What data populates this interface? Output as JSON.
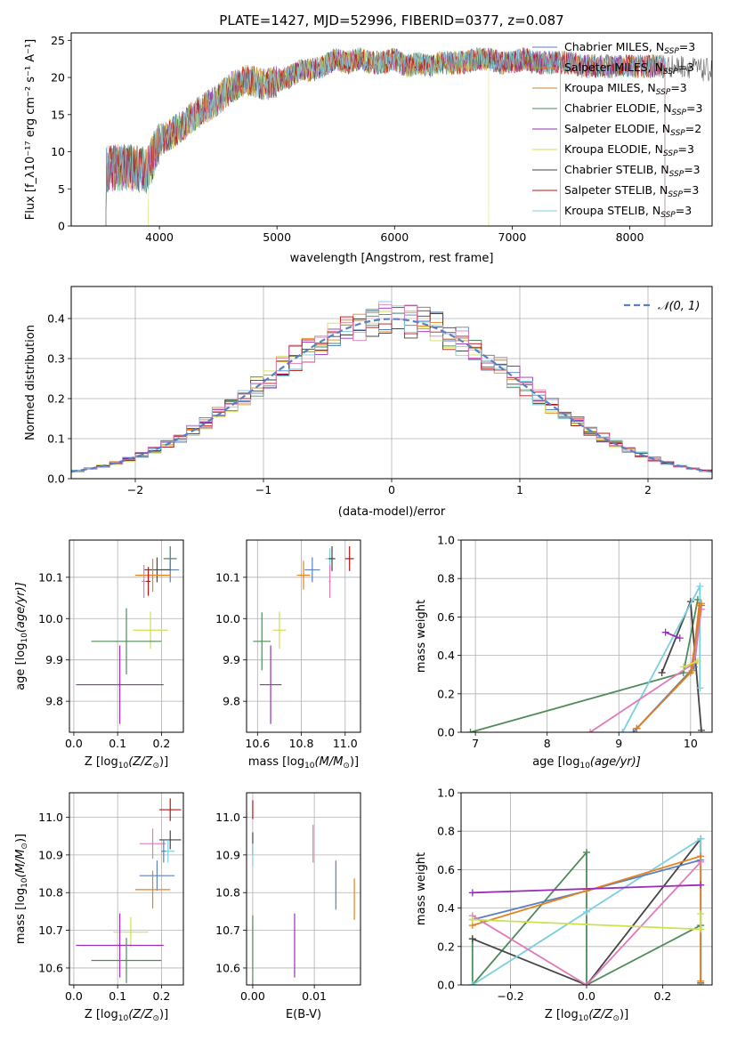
{
  "chart_data": [
    {
      "id": "spectrum",
      "type": "line",
      "title": "PLATE=1427, MJD=52996, FIBERID=0377, z=0.087",
      "xlabel": "wavelength [Angstrom, rest frame]",
      "ylabel": "Flux [f_λ10⁻¹⁷ erg cm⁻² s⁻¹ A⁻¹]",
      "xlim": [
        3250,
        8700
      ],
      "ylim": [
        0,
        26
      ],
      "xticks": [
        4000,
        5000,
        6000,
        7000,
        8000
      ],
      "yticks": [
        0,
        5,
        10,
        15,
        20,
        25
      ],
      "grid": false,
      "legend_position": "right",
      "series": [
        {
          "name": "Chabrier MILES, N_SSP=3",
          "label_main": "Chabrier MILES, N",
          "label_sub": "SSP",
          "label_tail": "=3",
          "color": "#5a7fc2"
        },
        {
          "name": "Salpeter MILES, N_SSP=3",
          "label_main": "Salpeter MILES, N",
          "label_sub": "SSP",
          "label_tail": "=3",
          "color": "#e3831f"
        },
        {
          "name": "Kroupa MILES, N_SSP=3",
          "label_main": "Kroupa MILES, N",
          "label_sub": "SSP",
          "label_tail": "=3",
          "color": "#d0802f"
        },
        {
          "name": "Chabrier ELODIE, N_SSP=3",
          "label_main": "Chabrier ELODIE, N",
          "label_sub": "SSP",
          "label_tail": "=3",
          "color": "#4f8b5a"
        },
        {
          "name": "Salpeter ELODIE, N_SSP=2",
          "label_main": "Salpeter ELODIE, N",
          "label_sub": "SSP",
          "label_tail": "=2",
          "color": "#9a2db8"
        },
        {
          "name": "Kroupa ELODIE, N_SSP=3",
          "label_main": "Kroupa ELODIE, N",
          "label_sub": "SSP",
          "label_tail": "=3",
          "color": "#cfe04f"
        },
        {
          "name": "Chabrier STELIB, N_SSP=3",
          "label_main": "Chabrier STELIB, N",
          "label_sub": "SSP",
          "label_tail": "=3",
          "color": "#444444"
        },
        {
          "name": "Salpeter STELIB, N_SSP=3",
          "label_main": "Salpeter STELIB, N",
          "label_sub": "SSP",
          "label_tail": "=3",
          "color": "#b81414"
        },
        {
          "name": "Kroupa STELIB, N_SSP=3",
          "label_main": "Kroupa STELIB, N",
          "label_sub": "SSP",
          "label_tail": "=3",
          "color": "#7ccfe0"
        }
      ],
      "continuum": {
        "x": [
          3500,
          3600,
          3700,
          3800,
          3900,
          4000,
          4100,
          4200,
          4300,
          4400,
          4500,
          4600,
          4700,
          4800,
          4900,
          5000,
          5100,
          5200,
          5300,
          5400,
          5500,
          5600,
          5700,
          5800,
          5900,
          6000,
          6100,
          6200,
          6300,
          6400,
          6500,
          6600,
          6700,
          6800,
          6900,
          7000,
          7100,
          7200,
          7300,
          7400,
          7500,
          7600,
          7700,
          7800,
          7900,
          8000,
          8100,
          8200,
          8300,
          8400,
          8500,
          8600,
          8700
        ],
        "y": [
          7.5,
          7.8,
          7.9,
          7.7,
          7.5,
          11.5,
          12.5,
          13.5,
          15,
          16,
          17,
          18.5,
          19.5,
          19.5,
          19,
          19.5,
          20,
          21,
          21,
          21.5,
          22.5,
          22,
          22.5,
          22,
          22,
          22.5,
          21.5,
          22,
          21.5,
          22,
          22,
          22,
          22.5,
          22.5,
          22,
          22,
          22.5,
          22,
          22,
          22,
          22,
          21.5,
          21.5,
          21.5,
          21.5,
          21.5,
          21.5,
          21.5,
          21.5,
          21.5,
          21.5,
          21,
          21
        ]
      },
      "spectrum_ranges": [
        {
          "series": "Chabrier MILES, N_SSP=3",
          "x_start": 3540,
          "x_end": 7410
        },
        {
          "series": "Kroupa ELODIE, N_SSP=3",
          "x_start": 3900,
          "x_end": 6800
        },
        {
          "series": "Chabrier STELIB, N_SSP=3",
          "x_start": 3540,
          "x_end": 8700
        }
      ]
    },
    {
      "id": "residuals",
      "type": "step",
      "xlabel": "(data-model)/error",
      "ylabel": "Normed distribution",
      "xlim": [
        -2.5,
        2.5
      ],
      "ylim": [
        0,
        0.48
      ],
      "xticks": [
        -2,
        -1,
        0,
        1,
        2
      ],
      "yticks": [
        0.0,
        0.1,
        0.2,
        0.3,
        0.4
      ],
      "grid": true,
      "legend": {
        "label": "𝒩(0, 1)",
        "position": "top-right"
      },
      "bin_width": 0.1,
      "reference_curve": "normal(0,1)"
    },
    {
      "id": "age_vs_Z",
      "type": "errorbar",
      "xlabel_main": "Z [log",
      "xlabel_sub": "10",
      "xlabel_tail": "(Z/Z",
      "xlabel_sun": "⊙",
      "xlabel_end": ")]",
      "ylabel_main": "age  [log",
      "ylabel_sub": "10",
      "ylabel_tail": "(age/yr)]",
      "xlim": [
        -0.01,
        0.25
      ],
      "ylim": [
        9.725,
        10.19
      ],
      "xticks": [
        0.0,
        0.1,
        0.2
      ],
      "yticks": [
        9.8,
        9.9,
        10.0,
        10.1
      ],
      "grid": true,
      "points": [
        {
          "x": 0.22,
          "y": 10.145,
          "xerr": 0.015,
          "yerr": 0.03,
          "color": "#7ccfe0"
        },
        {
          "x": 0.22,
          "y": 10.145,
          "xerr": 0.015,
          "yerr": 0.03,
          "color": "#4f8b5a"
        },
        {
          "x": 0.22,
          "y": 10.118,
          "xerr": 0.02,
          "yerr": 0.03,
          "color": "#5a7fc2"
        },
        {
          "x": 0.19,
          "y": 10.118,
          "xerr": 0.03,
          "yerr": 0.03,
          "color": "#444444"
        },
        {
          "x": 0.18,
          "y": 10.105,
          "xerr": 0.04,
          "yerr": 0.04,
          "color": "#e3831f"
        },
        {
          "x": 0.16,
          "y": 10.09,
          "xerr": 0.005,
          "yerr": 0.04,
          "color": "#e07bb8"
        },
        {
          "x": 0.17,
          "y": 10.09,
          "xerr": 0.005,
          "yerr": 0.035,
          "color": "#b81414"
        },
        {
          "x": 0.175,
          "y": 9.972,
          "xerr": 0.04,
          "yerr": 0.045,
          "color": "#cfe04f"
        },
        {
          "x": 0.12,
          "y": 9.945,
          "xerr": 0.08,
          "yerr": 0.08,
          "color": "#4f8b5a"
        },
        {
          "x": 0.105,
          "y": 9.84,
          "xerr": 0.1,
          "yerr": 0.095,
          "color": "#9a2db8"
        }
      ]
    },
    {
      "id": "age_vs_mass",
      "type": "errorbar",
      "xlabel_main": "mass [log",
      "xlabel_sub": "10",
      "xlabel_tail": "(M/M",
      "xlabel_sun": "⊙",
      "xlabel_end": ")]",
      "xlim": [
        10.55,
        11.07
      ],
      "ylim": [
        9.725,
        10.19
      ],
      "xticks": [
        10.6,
        10.8,
        11.0
      ],
      "yticks": [
        9.8,
        9.9,
        10.0,
        10.1
      ],
      "grid": true,
      "points": [
        {
          "x": 11.02,
          "y": 10.145,
          "xerr": 0.02,
          "yerr": 0.03,
          "color": "#b81414"
        },
        {
          "x": 10.93,
          "y": 10.145,
          "xerr": 0.02,
          "yerr": 0.025,
          "color": "#7ccfe0"
        },
        {
          "x": 10.94,
          "y": 10.145,
          "xerr": 0.015,
          "yerr": 0.03,
          "color": "#444444"
        },
        {
          "x": 10.85,
          "y": 10.118,
          "xerr": 0.035,
          "yerr": 0.03,
          "color": "#5a7fc2"
        },
        {
          "x": 10.81,
          "y": 10.105,
          "xerr": 0.03,
          "yerr": 0.035,
          "color": "#e3831f"
        },
        {
          "x": 10.93,
          "y": 10.09,
          "xerr": 0.005,
          "yerr": 0.04,
          "color": "#e07bb8"
        },
        {
          "x": 10.7,
          "y": 9.972,
          "xerr": 0.03,
          "yerr": 0.045,
          "color": "#cfe04f"
        },
        {
          "x": 10.62,
          "y": 9.945,
          "xerr": 0.04,
          "yerr": 0.07,
          "color": "#4f8b5a"
        },
        {
          "x": 10.66,
          "y": 9.84,
          "xerr": 0.05,
          "yerr": 0.095,
          "color": "#9a2db8"
        }
      ]
    },
    {
      "id": "mass_weight_vs_age",
      "type": "line",
      "xlabel_main": "age  [log",
      "xlabel_sub": "10",
      "xlabel_tail": "(age/yr)]",
      "ylabel": "mass weight",
      "xlim": [
        6.8,
        10.3
      ],
      "ylim": [
        0,
        1
      ],
      "xticks": [
        7,
        8,
        9,
        10
      ],
      "yticks": [
        0.0,
        0.2,
        0.4,
        0.6,
        0.8,
        1.0
      ],
      "grid": true,
      "series": [
        {
          "color": "#4f8b5a",
          "x": [
            6.93,
            9.9,
            10.1
          ],
          "y": [
            0.0,
            0.31,
            0.69
          ]
        },
        {
          "color": "#444444",
          "x": [
            9.6,
            10.0,
            10.15
          ],
          "y": [
            0.31,
            0.68,
            0.01
          ]
        },
        {
          "color": "#7ccfe0",
          "x": [
            9.05,
            10.13,
            10.13
          ],
          "y": [
            0.0,
            0.76,
            0.23
          ]
        },
        {
          "color": "#5a7fc2",
          "x": [
            9.2,
            10.05,
            10.15
          ],
          "y": [
            0.0,
            0.34,
            0.66
          ]
        },
        {
          "color": "#e07bb8",
          "x": [
            8.6,
            10.05,
            10.15
          ],
          "y": [
            0.0,
            0.36,
            0.64
          ]
        },
        {
          "color": "#e3831f",
          "x": [
            9.25,
            10.0,
            10.15
          ],
          "y": [
            0.02,
            0.31,
            0.67
          ]
        },
        {
          "color": "#d0802f",
          "x": [
            9.25,
            10.02,
            10.12
          ],
          "y": [
            0.02,
            0.32,
            0.66
          ]
        },
        {
          "color": "#9a2db8",
          "x": [
            9.65,
            9.85
          ],
          "y": [
            0.52,
            0.49
          ]
        },
        {
          "color": "#cfe04f",
          "x": [
            9.9,
            10.1
          ],
          "y": [
            0.34,
            0.37
          ]
        }
      ]
    },
    {
      "id": "mass_vs_Z",
      "type": "errorbar",
      "xlabel_main": "Z [log",
      "xlabel_sub": "10",
      "xlabel_tail": "(Z/Z",
      "xlabel_sun": "⊙",
      "xlabel_end": ")]",
      "ylabel_main": "mass [log",
      "ylabel_sub": "10",
      "ylabel_tail": "(M/M",
      "ylabel_sun": "⊙",
      "ylabel_end": ")]",
      "xlim": [
        -0.01,
        0.25
      ],
      "ylim": [
        10.555,
        11.065
      ],
      "xticks": [
        0.0,
        0.1,
        0.2
      ],
      "yticks": [
        10.6,
        10.7,
        10.8,
        10.9,
        11.0
      ],
      "grid": true,
      "points": [
        {
          "x": 0.22,
          "y": 11.02,
          "xerr": 0.025,
          "yerr": 0.03,
          "color": "#b81414"
        },
        {
          "x": 0.22,
          "y": 10.94,
          "xerr": 0.025,
          "yerr": 0.025,
          "color": "#444444"
        },
        {
          "x": 0.18,
          "y": 10.93,
          "xerr": 0.03,
          "yerr": 0.04,
          "color": "#e07bb8"
        },
        {
          "x": 0.215,
          "y": 10.91,
          "xerr": 0.015,
          "yerr": 0.03,
          "color": "#7ccfe0"
        },
        {
          "x": 0.205,
          "y": 10.91,
          "xerr": 0.005,
          "yerr": 0.03,
          "color": "#5a7fc2"
        },
        {
          "x": 0.19,
          "y": 10.845,
          "xerr": 0.04,
          "yerr": 0.04,
          "color": "#5a7fc2"
        },
        {
          "x": 0.18,
          "y": 10.808,
          "xerr": 0.04,
          "yerr": 0.05,
          "color": "#e3831f"
        },
        {
          "x": 0.13,
          "y": 10.695,
          "xerr": 0.04,
          "yerr": 0.04,
          "color": "#cfe04f"
        },
        {
          "x": 0.105,
          "y": 10.66,
          "xerr": 0.1,
          "yerr": 0.085,
          "color": "#9a2db8"
        },
        {
          "x": 0.12,
          "y": 10.62,
          "xerr": 0.08,
          "yerr": 0.06,
          "color": "#4f8b5a"
        }
      ]
    },
    {
      "id": "mass_vs_EBV",
      "type": "errorbar",
      "xlabel": "E(B-V)",
      "xlim": [
        -0.001,
        0.0175
      ],
      "ylim": [
        10.555,
        11.065
      ],
      "xticks": [
        0.0,
        0.01
      ],
      "yticks": [
        10.6,
        10.7,
        10.8,
        10.9,
        11.0
      ],
      "grid": true,
      "points": [
        {
          "x": 0.0,
          "y": 11.02,
          "xerr": 0,
          "yerr": 0.025,
          "color": "#b81414"
        },
        {
          "x": 0.0,
          "y": 10.93,
          "xerr": 0,
          "yerr": 0.03,
          "color": "#444444"
        },
        {
          "x": 0.0,
          "y": 10.9,
          "xerr": 0,
          "yerr": 0.03,
          "color": "#7ccfe0"
        },
        {
          "x": 0.0,
          "y": 10.665,
          "xerr": 0,
          "yerr": 0.065,
          "color": "#cfe04f"
        },
        {
          "x": 0.0,
          "y": 10.64,
          "xerr": 0,
          "yerr": 0.1,
          "color": "#4f8b5a"
        },
        {
          "x": 0.0068,
          "y": 10.66,
          "xerr": 0,
          "yerr": 0.085,
          "color": "#9a2db8"
        },
        {
          "x": 0.0098,
          "y": 10.93,
          "xerr": 0,
          "yerr": 0.05,
          "color": "#e07bb8"
        },
        {
          "x": 0.0135,
          "y": 10.82,
          "xerr": 0,
          "yerr": 0.065,
          "color": "#5a7fc2"
        },
        {
          "x": 0.0165,
          "y": 10.783,
          "xerr": 0,
          "yerr": 0.055,
          "color": "#e3831f"
        }
      ]
    },
    {
      "id": "mass_weight_vs_Z",
      "type": "line",
      "xlabel_main": "Z [log",
      "xlabel_sub": "10",
      "xlabel_tail": "(Z/Z",
      "xlabel_sun": "⊙",
      "xlabel_end": ")]",
      "ylabel": "mass weight",
      "xlim": [
        -0.33,
        0.33
      ],
      "ylim": [
        0,
        1
      ],
      "xticks": [
        -0.2,
        0.0,
        0.2
      ],
      "yticks": [
        0.0,
        0.2,
        0.4,
        0.6,
        0.8,
        1.0
      ],
      "grid": true,
      "series": [
        {
          "color": "#4f8b5a",
          "x": [
            -0.3,
            -0.3,
            0.0,
            0.0,
            0.3,
            0.3
          ],
          "y": [
            0.24,
            0.0,
            0.69,
            0.0,
            0.31,
            0.0
          ]
        },
        {
          "color": "#444444",
          "x": [
            -0.3,
            0.0,
            0.3,
            0.3
          ],
          "y": [
            0.24,
            0.0,
            0.76,
            0.01
          ]
        },
        {
          "color": "#7ccfe0",
          "x": [
            -0.3,
            0.0,
            0.3,
            0.3
          ],
          "y": [
            0.0,
            0.38,
            0.76,
            0.0
          ]
        },
        {
          "color": "#5a7fc2",
          "x": [
            -0.3,
            0.0,
            0.3
          ],
          "y": [
            0.34,
            0.49,
            0.65
          ]
        },
        {
          "color": "#e3831f",
          "x": [
            -0.3,
            0.0,
            0.3,
            0.3
          ],
          "y": [
            0.31,
            0.49,
            0.67,
            0.02
          ]
        },
        {
          "color": "#e07bb8",
          "x": [
            -0.3,
            0.0,
            0.3
          ],
          "y": [
            0.36,
            0.0,
            0.64
          ]
        },
        {
          "color": "#9a2db8",
          "x": [
            -0.3,
            0.3
          ],
          "y": [
            0.48,
            0.52
          ]
        },
        {
          "color": "#cfe04f",
          "x": [
            -0.3,
            0.3,
            0.3
          ],
          "y": [
            0.34,
            0.29,
            0.37
          ]
        }
      ]
    }
  ]
}
